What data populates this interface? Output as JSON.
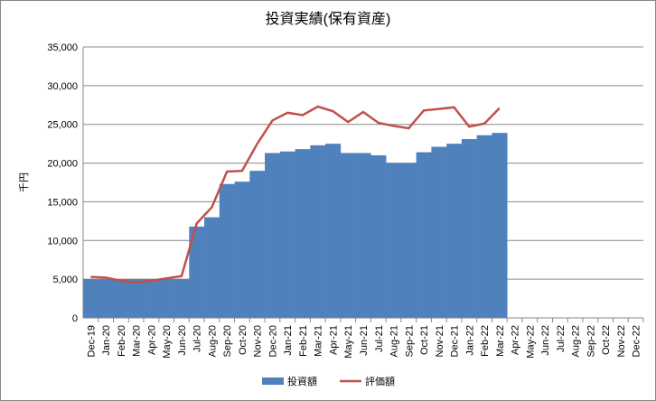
{
  "chart_data": {
    "type": "bar-line",
    "title": "投資実績(保有資産)",
    "y_label": "千円",
    "categories": [
      "Dec-19",
      "Jan-20",
      "Feb-20",
      "Mar-20",
      "Apr-20",
      "May-20",
      "Jun-20",
      "Jul-20",
      "Aug-20",
      "Sep-20",
      "Oct-20",
      "Nov-20",
      "Dec-20",
      "Jan-21",
      "Feb-21",
      "Mar-21",
      "Apr-21",
      "May-21",
      "Jun-21",
      "Jul-21",
      "Aug-21",
      "Sep-21",
      "Oct-21",
      "Nov-21",
      "Dec-21",
      "Jan-22",
      "Feb-22",
      "Mar-22",
      "Apr-22",
      "May-22",
      "Jun-22",
      "Jul-22",
      "Aug-22",
      "Sep-22",
      "Oct-22",
      "Nov-22",
      "Dec-22"
    ],
    "series": [
      {
        "name": "投資額",
        "type": "bar",
        "color": "#4f81bd",
        "values": [
          5000,
          5000,
          5000,
          5000,
          5000,
          5000,
          5000,
          11800,
          13000,
          17300,
          17600,
          19000,
          21300,
          21500,
          21800,
          22300,
          22500,
          21300,
          21300,
          21000,
          20000,
          20000,
          21400,
          22100,
          22500,
          23100,
          23600,
          23900,
          null,
          null,
          null,
          null,
          null,
          null,
          null,
          null,
          null
        ]
      },
      {
        "name": "評価額",
        "type": "line",
        "color": "#c0504d",
        "values": [
          5300,
          5200,
          4800,
          4600,
          4800,
          5100,
          5400,
          12200,
          14300,
          18900,
          19000,
          22500,
          25500,
          26500,
          26200,
          27300,
          26700,
          25300,
          26600,
          25200,
          24800,
          24500,
          26800,
          27000,
          27200,
          24700,
          25100,
          27100,
          null,
          null,
          null,
          null,
          null,
          null,
          null,
          null,
          null
        ]
      }
    ],
    "ylim": [
      0,
      35000
    ],
    "yticks": [
      0,
      {
        "value": 5000,
        "label": "5,000"
      },
      {
        "value": 10000,
        "label": "10,000"
      },
      {
        "value": 15000,
        "label": "15,000"
      },
      {
        "value": 20000,
        "label": "20,000"
      },
      {
        "value": 25000,
        "label": "25,000"
      },
      {
        "value": 30000,
        "label": "30,000"
      },
      {
        "value": 35000,
        "label": "35,000"
      }
    ],
    "grid": true,
    "legend": "bottom"
  }
}
